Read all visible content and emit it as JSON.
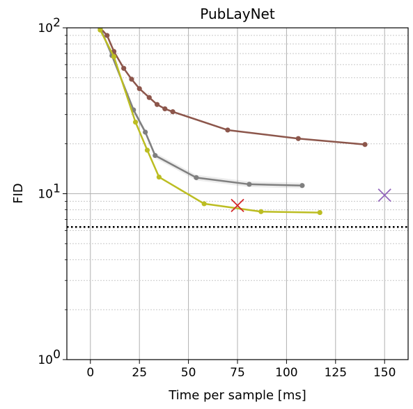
{
  "chart_data": {
    "type": "line",
    "title": "PubLayNet",
    "xlabel": "Time per sample [ms]",
    "ylabel": "FID",
    "xlim": [
      -12,
      162
    ],
    "ylim": [
      1,
      100
    ],
    "y_scale": "log",
    "grid": true,
    "x_ticks": [
      {
        "value": 0,
        "label": "0"
      },
      {
        "value": 25,
        "label": "25"
      },
      {
        "value": 50,
        "label": "50"
      },
      {
        "value": 75,
        "label": "75"
      },
      {
        "value": 100,
        "label": "100"
      },
      {
        "value": 125,
        "label": "125"
      },
      {
        "value": 150,
        "label": "150"
      }
    ],
    "y_ticks": [
      {
        "value": 1,
        "label_base": "10",
        "label_exp": "0"
      },
      {
        "value": 10,
        "label_base": "10",
        "label_exp": "1"
      },
      {
        "value": 100,
        "label_base": "10",
        "label_exp": "2"
      }
    ],
    "series": [
      {
        "color": "#8c564b",
        "band": false,
        "x": [
          5,
          8.5,
          12,
          17,
          21,
          25,
          30,
          34,
          38,
          42,
          70,
          106,
          140
        ],
        "y": [
          100,
          90,
          72,
          57,
          49,
          43,
          38,
          34.5,
          32.5,
          31.2,
          24.2,
          21.5,
          19.8
        ]
      },
      {
        "color": "#7f7f7f",
        "band": true,
        "x": [
          5,
          11,
          22,
          28,
          33,
          54,
          81,
          108
        ],
        "y": [
          100,
          68,
          32,
          23.5,
          17,
          12.5,
          11.4,
          11.2
        ]
      },
      {
        "color": "#bcbd22",
        "band": false,
        "x": [
          5,
          12,
          23,
          29,
          35,
          58,
          87,
          117
        ],
        "y": [
          97,
          67,
          27,
          18.3,
          12.6,
          8.7,
          7.8,
          7.7
        ]
      }
    ],
    "markers": [
      {
        "shape": "x",
        "color": "#d62728",
        "x": 75,
        "y": 8.5
      },
      {
        "shape": "x",
        "color": "#9467bd",
        "x": 150,
        "y": 9.8
      }
    ],
    "reference_line": {
      "y": 6.3,
      "style": "dotted",
      "color": "#000000"
    }
  }
}
